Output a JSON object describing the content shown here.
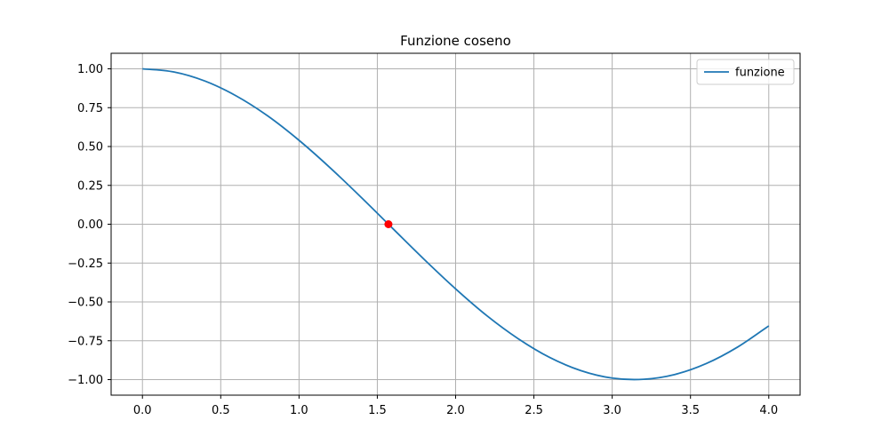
{
  "chart_data": {
    "type": "line",
    "title": "Funzione coseno",
    "xlabel": "",
    "ylabel": "",
    "xlim": [
      -0.2,
      4.2
    ],
    "ylim": [
      -1.1,
      1.1
    ],
    "xticks": [
      0.0,
      0.5,
      1.0,
      1.5,
      2.0,
      2.5,
      3.0,
      3.5,
      4.0
    ],
    "xtick_labels": [
      "0.0",
      "0.5",
      "1.0",
      "1.5",
      "2.0",
      "2.5",
      "3.0",
      "3.5",
      "4.0"
    ],
    "yticks": [
      1.0,
      0.75,
      0.5,
      0.25,
      0.0,
      -0.25,
      -0.5,
      -0.75,
      -1.0
    ],
    "ytick_labels": [
      "1.00",
      "0.75",
      "0.50",
      "0.25",
      "0.00",
      "−0.25",
      "−0.50",
      "−0.75",
      "−1.00"
    ],
    "grid": true,
    "legend_position": "top-right",
    "series": [
      {
        "name": "funzione",
        "color": "#1f77b4",
        "x": [
          0.0,
          0.2,
          0.4,
          0.6,
          0.8,
          1.0,
          1.2,
          1.4,
          1.6,
          1.8,
          2.0,
          2.2,
          2.4,
          2.6,
          2.8,
          3.0,
          3.2,
          3.4,
          3.6,
          3.8,
          4.0
        ],
        "y": [
          1.0,
          0.98,
          0.921,
          0.825,
          0.697,
          0.54,
          0.362,
          0.17,
          -0.029,
          -0.227,
          -0.416,
          -0.589,
          -0.737,
          -0.857,
          -0.942,
          -0.99,
          -0.998,
          -0.967,
          -0.897,
          -0.791,
          -0.654
        ]
      }
    ],
    "markers": [
      {
        "x": 1.571,
        "y": 0.0,
        "color": "#ff0000"
      }
    ]
  }
}
